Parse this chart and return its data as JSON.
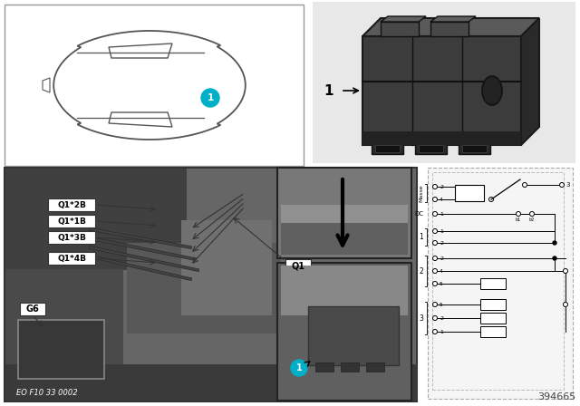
{
  "bg_color": "#ffffff",
  "cyan_color": "#00b0c8",
  "part_number": "394665",
  "eo_text": "EO F10 33 0002",
  "relay_label": "1",
  "dark_photo": "#5a5a5a",
  "medium_photo": "#787878",
  "light_photo": "#909090"
}
